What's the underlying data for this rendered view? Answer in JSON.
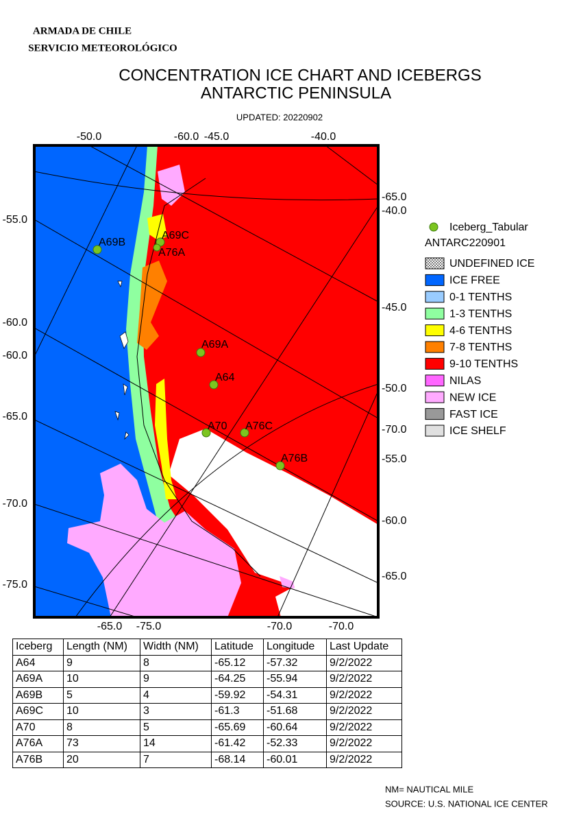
{
  "header": {
    "org": "ARMADA DE CHILE",
    "service": "SERVICIO METEOROLÓGICO",
    "title_line1": "CONCENTRATION ICE CHART AND ICEBERGS",
    "title_line2": "ANTARCTIC PENINSULA",
    "updated": "UPDATED: 20220902"
  },
  "map": {
    "top_labels": [
      "-50.0",
      "-60.0",
      "-45.0",
      "-40.0"
    ],
    "left_labels": [
      "-55.0",
      "-60.0",
      "-60.0",
      "-65.0",
      "-70.0",
      "-75.0"
    ],
    "right_labels": [
      "-65.0",
      "-40.0",
      "-45.0",
      "-50.0",
      "-70.0",
      "-55.0",
      "-60.0",
      "-65.0"
    ],
    "bottom_labels": [
      "-65.0",
      "-75.0",
      "-70.0",
      "-70.0"
    ],
    "icebergs": [
      "A69B",
      "A69C",
      "A76A",
      "A69A",
      "A64",
      "A70",
      "A76C",
      "A76B"
    ]
  },
  "legend": {
    "symbol": "Iceberg_Tabular",
    "chart_id": "ANTARC220901",
    "items": [
      "UNDEFINED ICE",
      "ICE FREE",
      "0-1 TENTHS",
      "1-3 TENTHS",
      "4-6 TENTHS",
      "7-8 TENTHS",
      "9-10 TENTHS",
      "NILAS",
      "NEW ICE",
      "FAST ICE",
      "ICE SHELF"
    ]
  },
  "table": {
    "header": [
      "Iceberg",
      "Length (NM)",
      "Width (NM)",
      "Latitude",
      "Longitude",
      "Last Update"
    ],
    "rows": [
      [
        "A64",
        "9",
        "8",
        "-65.12",
        "-57.32",
        "9/2/2022"
      ],
      [
        "A69A",
        "10",
        "9",
        "-64.25",
        "-55.94",
        "9/2/2022"
      ],
      [
        "A69B",
        "5",
        "4",
        "-59.92",
        "-54.31",
        "9/2/2022"
      ],
      [
        "A69C",
        "10",
        "3",
        "-61.3",
        "-51.68",
        "9/2/2022"
      ],
      [
        "A70",
        "8",
        "5",
        "-65.69",
        "-60.64",
        "9/2/2022"
      ],
      [
        "A76A",
        "73",
        "14",
        "-61.42",
        "-52.33",
        "9/2/2022"
      ],
      [
        "A76B",
        "20",
        "7",
        "-68.14",
        "-60.01",
        "9/2/2022"
      ]
    ]
  },
  "footer": {
    "note": "NM= NAUTICAL MILE",
    "source": "SOURCE: U.S. NATIONAL ICE CENTER"
  }
}
